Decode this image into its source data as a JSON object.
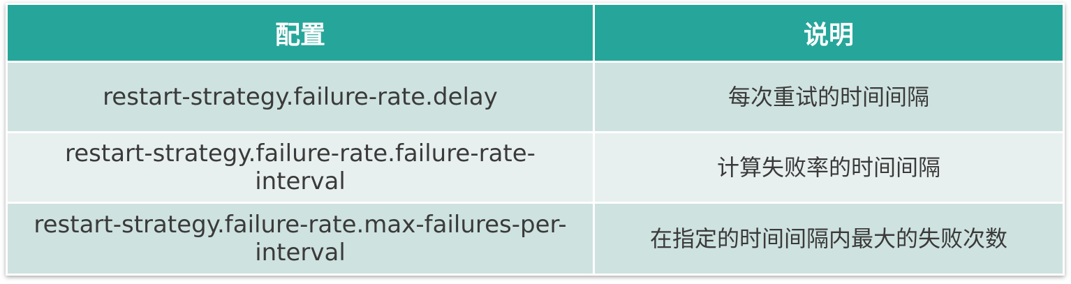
{
  "table": {
    "headers": {
      "config": "配置",
      "description": "说明"
    },
    "rows": [
      {
        "config": "restart-strategy.failure-rate.delay",
        "description": "每次重试的时间间隔"
      },
      {
        "config_line1": "restart-strategy.failure-rate.failure-rate-",
        "config_line2": "interval",
        "description": "计算失败率的时间间隔"
      },
      {
        "config_line1": "restart-strategy.failure-rate.max-failures-per-",
        "config_line2": "interval",
        "description": "在指定的时间间隔内最大的失败次数"
      }
    ]
  },
  "colors": {
    "header_bg": "#26a69a",
    "row_odd_bg": "#cee2df",
    "row_even_bg": "#e8f0ef"
  }
}
